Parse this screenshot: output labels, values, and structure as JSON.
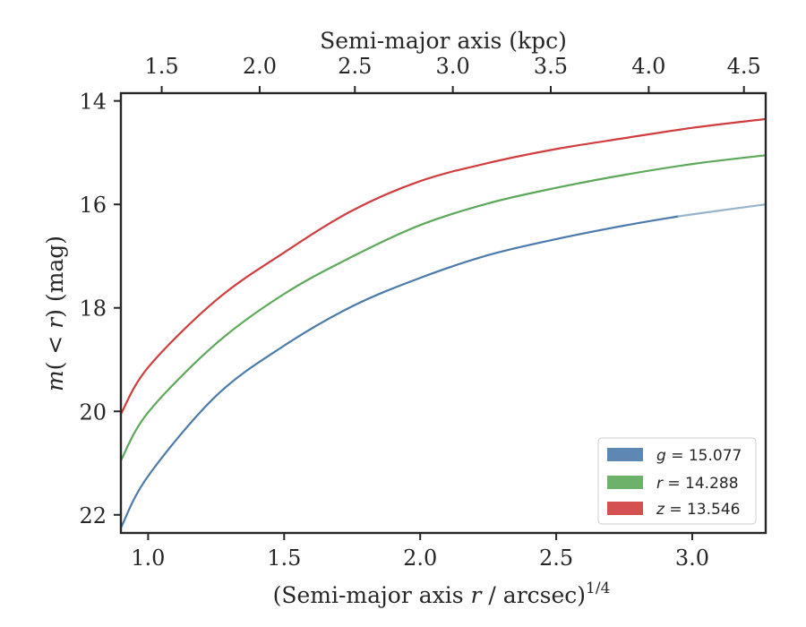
{
  "chart_data": {
    "type": "line",
    "xlabel": "(Semi-major axis r / arcsec)",
    "xlabel_parts": [
      "(Semi-major axis ",
      "r",
      " / arcsec)",
      "1/4"
    ],
    "ylabel": "m(< r) (mag)",
    "ylabel_parts": [
      "m",
      "( < ",
      "r",
      ") (mag)"
    ],
    "top_xlabel": "Semi-major axis (kpc)",
    "xlim": [
      0.9,
      3.27
    ],
    "ylim": [
      22.35,
      13.85
    ],
    "y_inverted": true,
    "x_ticks": [
      1.0,
      1.5,
      2.0,
      2.5,
      3.0
    ],
    "x_tick_labels": [
      "1.0",
      "1.5",
      "2.0",
      "2.5",
      "3.0"
    ],
    "y_ticks": [
      14,
      16,
      18,
      20,
      22
    ],
    "y_tick_labels": [
      "14",
      "16",
      "18",
      "20",
      "22"
    ],
    "top_x_ticks": [
      1.5,
      2.0,
      2.5,
      3.0,
      3.5,
      4.0,
      4.5
    ],
    "top_x_tick_labels": [
      "1.5",
      "2.0",
      "2.5",
      "3.0",
      "3.5",
      "4.0",
      "4.5"
    ],
    "top_axis_positions_bottom_units": [
      1.05,
      1.41,
      1.76,
      2.12,
      2.48,
      2.84,
      3.19
    ],
    "grid": false,
    "legend_position": "lower-right",
    "series": [
      {
        "name": "g = 15.077",
        "legend_parts": [
          "g",
          " = 15.077"
        ],
        "color": "#4c7bab",
        "extension_color": "#98b4cc",
        "x": [
          0.9,
          1.0,
          1.25,
          1.5,
          1.75,
          2.0,
          2.25,
          2.5,
          2.75,
          2.95
        ],
        "y": [
          22.25,
          21.25,
          19.7,
          18.73,
          17.97,
          17.42,
          16.98,
          16.67,
          16.41,
          16.23
        ]
      },
      {
        "name": "g extension",
        "color": "#98b4cc",
        "x": [
          2.95,
          3.1,
          3.27
        ],
        "y": [
          16.23,
          16.12,
          16.0
        ]
      },
      {
        "name": "r = 14.288",
        "legend_parts": [
          "r",
          " = 14.288"
        ],
        "color": "#5da85a",
        "x": [
          0.9,
          1.0,
          1.25,
          1.5,
          1.75,
          2.0,
          2.25,
          2.5,
          2.75,
          3.0,
          3.27
        ],
        "y": [
          20.95,
          20.02,
          18.69,
          17.73,
          17.01,
          16.4,
          15.98,
          15.68,
          15.43,
          15.22,
          15.05
        ]
      },
      {
        "name": "z = 13.546",
        "legend_parts": [
          "z",
          " = 13.546"
        ],
        "color": "#d03d3e",
        "x": [
          0.9,
          1.0,
          1.25,
          1.5,
          1.75,
          2.0,
          2.25,
          2.5,
          2.75,
          3.0,
          3.27
        ],
        "y": [
          20.05,
          19.15,
          17.85,
          16.93,
          16.12,
          15.55,
          15.2,
          14.93,
          14.72,
          14.52,
          14.35
        ]
      }
    ]
  }
}
